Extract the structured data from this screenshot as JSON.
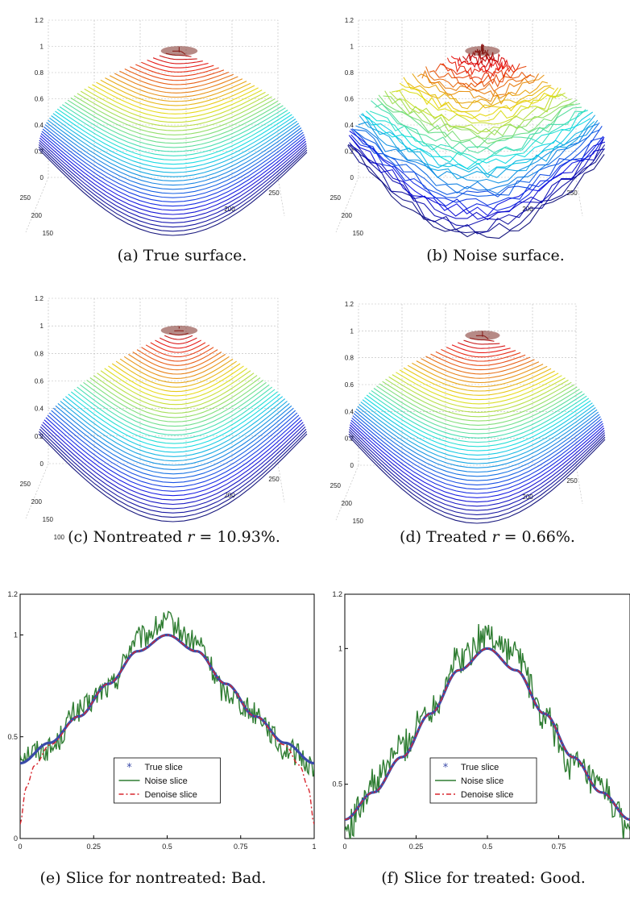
{
  "colors": {
    "true": "#3a4aa8",
    "noise": "#2f7d32",
    "denoise": "#d8262e",
    "frame": "#000000",
    "grid": "#b9b9b9"
  },
  "surface_panels": [
    {
      "id": "a",
      "caption": "(a)  True surface.",
      "z_ticks": [
        "1.2",
        "1",
        "0.8",
        "0.6",
        "0.4",
        "0.2",
        "0"
      ],
      "y_ticks": [
        "250",
        "200",
        "150"
      ],
      "x_ticks": [
        "200",
        "250"
      ],
      "style": "smooth"
    },
    {
      "id": "b",
      "caption": "(b)  Noise surface.",
      "z_ticks": [
        "1.2",
        "1",
        "0.8",
        "0.6",
        "0.4",
        "0.2",
        "0"
      ],
      "y_ticks": [
        "250",
        "200",
        "150"
      ],
      "x_ticks": [
        "200",
        "250"
      ],
      "style": "noisy"
    },
    {
      "id": "c",
      "caption": "(c)  Nontreated r = 10.93%.",
      "caption_text": "(c)  Nontreated ",
      "caption_var": "r",
      "caption_val": " = 10.93%.",
      "z_ticks": [
        "1.2",
        "1",
        "0.8",
        "0.6",
        "0.4",
        "0.2",
        "0"
      ],
      "y_ticks": [
        "250",
        "200",
        "150",
        "100"
      ],
      "x_ticks": [
        "200",
        "250"
      ],
      "style": "wide"
    },
    {
      "id": "d",
      "caption": "(d)  Treated r = 0.66%.",
      "caption_text": "(d)  Treated ",
      "caption_var": "r",
      "caption_val": " = 0.66%.",
      "z_ticks": [
        "1.2",
        "1",
        "0.8",
        "0.6",
        "0.4",
        "0.2",
        "0"
      ],
      "y_ticks": [
        "250",
        "200",
        "150"
      ],
      "x_ticks": [
        "200",
        "250"
      ],
      "style": "smooth"
    }
  ],
  "chart_data": [
    {
      "type": "line",
      "id": "e",
      "caption": "(e)  Slice for nontreated: Bad.",
      "xlim": [
        0,
        1
      ],
      "ylim": [
        0,
        1.2
      ],
      "x_ticks": [
        "0",
        "0.25",
        "0.5",
        "0.75",
        "1"
      ],
      "y_ticks": [
        "0",
        "0.5",
        "1",
        "1.2"
      ],
      "series": [
        {
          "name": "True slice",
          "x": [
            0,
            0.1,
            0.2,
            0.3,
            0.4,
            0.5,
            0.6,
            0.7,
            0.8,
            0.9,
            1
          ],
          "values": [
            0.37,
            0.47,
            0.6,
            0.76,
            0.92,
            1.0,
            0.92,
            0.76,
            0.6,
            0.47,
            0.37
          ]
        },
        {
          "name": "Noise slice",
          "x": [
            0,
            0.1,
            0.2,
            0.3,
            0.4,
            0.5,
            0.6,
            0.7,
            0.8,
            0.9,
            1
          ],
          "values": [
            0.42,
            0.44,
            0.63,
            0.74,
            0.98,
            1.06,
            0.96,
            0.72,
            0.62,
            0.44,
            0.36
          ]
        },
        {
          "name": "Denoise slice",
          "x": [
            0,
            0.02,
            0.05,
            0.1,
            0.2,
            0.3,
            0.4,
            0.5,
            0.6,
            0.7,
            0.8,
            0.9,
            0.95,
            0.98,
            1
          ],
          "values": [
            0.07,
            0.25,
            0.36,
            0.46,
            0.6,
            0.76,
            0.92,
            1.0,
            0.92,
            0.76,
            0.6,
            0.46,
            0.36,
            0.25,
            0.07
          ]
        }
      ],
      "legend": {
        "placement": "bottom-center"
      }
    },
    {
      "type": "line",
      "id": "f",
      "caption": "(f)  Slice for treated: Good.",
      "xlim": [
        0,
        1
      ],
      "ylim": [
        0.3,
        1.2
      ],
      "x_ticks": [
        "0",
        "0.25",
        "0.5",
        "0.75"
      ],
      "y_ticks": [
        "0.5",
        "1",
        "1.2"
      ],
      "series": [
        {
          "name": "True slice",
          "x": [
            0,
            0.1,
            0.2,
            0.3,
            0.4,
            0.5,
            0.6,
            0.7,
            0.8,
            0.9,
            1
          ],
          "values": [
            0.37,
            0.47,
            0.6,
            0.76,
            0.92,
            1.0,
            0.92,
            0.76,
            0.6,
            0.47,
            0.37
          ]
        },
        {
          "name": "Noise slice",
          "x": [
            0,
            0.1,
            0.2,
            0.3,
            0.4,
            0.5,
            0.6,
            0.7,
            0.8,
            0.9,
            1
          ],
          "values": [
            0.33,
            0.5,
            0.64,
            0.78,
            0.96,
            1.05,
            0.98,
            0.74,
            0.57,
            0.48,
            0.33
          ]
        },
        {
          "name": "Denoise slice",
          "x": [
            0,
            0.1,
            0.2,
            0.3,
            0.4,
            0.5,
            0.6,
            0.7,
            0.8,
            0.9,
            1
          ],
          "values": [
            0.37,
            0.47,
            0.6,
            0.76,
            0.92,
            1.0,
            0.92,
            0.76,
            0.6,
            0.47,
            0.37
          ]
        }
      ],
      "legend": {
        "placement": "bottom-center"
      }
    }
  ]
}
